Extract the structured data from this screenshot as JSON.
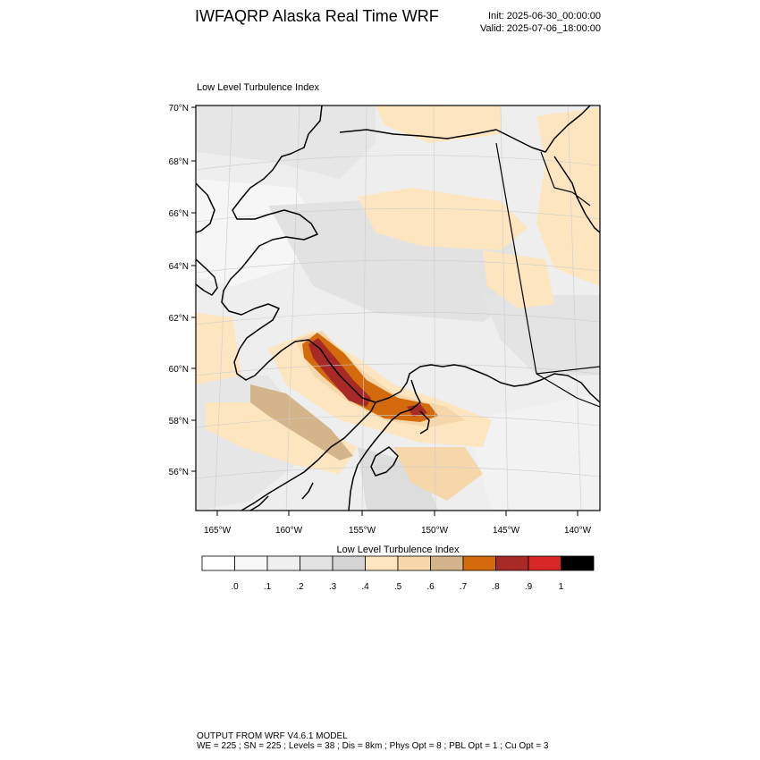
{
  "header": {
    "title": "IWFAQRP Alaska Real Time WRF",
    "init": "Init: 2025-06-30_00:00:00",
    "valid": "Valid: 2025-07-06_18:00:00"
  },
  "plot": {
    "title": "Low Level Turbulence Index",
    "lat_labels": [
      "70°N",
      "68°N",
      "66°N",
      "64°N",
      "62°N",
      "60°N",
      "58°N",
      "56°N"
    ],
    "lon_labels": [
      "165°W",
      "160°W",
      "155°W",
      "150°W",
      "145°W",
      "140°W"
    ]
  },
  "colorbar": {
    "title": "Low Level Turbulence Index",
    "labels": [
      ".0",
      ".1",
      ".2",
      ".3",
      ".4",
      ".5",
      ".6",
      ".7",
      ".8",
      ".9",
      "1"
    ],
    "colors": [
      "#ffffff",
      "#f8f8f8",
      "#efefef",
      "#e3e3e3",
      "#d5d5d5",
      "#fde6bf",
      "#f6d7aa",
      "#d4b48b",
      "#d36a0c",
      "#a72a27",
      "#d92727",
      "#000000"
    ]
  },
  "footer": {
    "line1": "OUTPUT FROM WRF V4.6.1 MODEL",
    "line2": "WE = 225 ; SN = 225 ; Levels = 38 ; Dis = 8km ; Phys Opt = 8 ; PBL Opt = 1 ; Cu Opt = 3"
  }
}
